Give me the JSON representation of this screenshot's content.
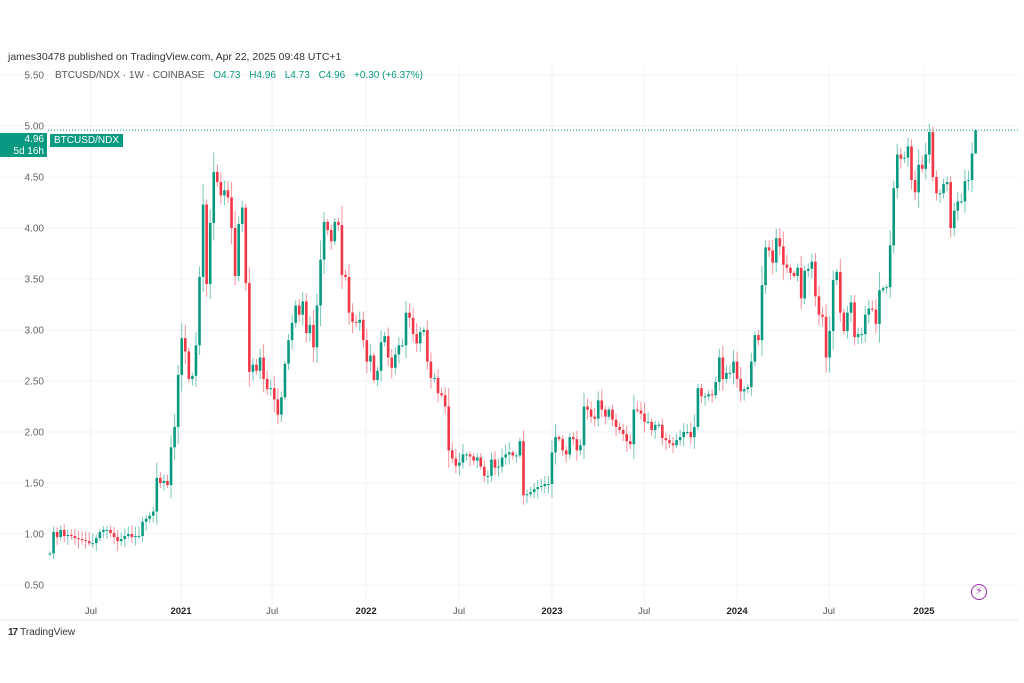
{
  "header": {
    "publisher": "james30478 published on TradingView.com, Apr 22, 2025 09:48 UTC+1"
  },
  "legend": {
    "symbol": "BTCUSD/NDX · 1W · COINBASE",
    "open": "O4.73",
    "high": "H4.96",
    "low": "L4.73",
    "close": "C4.96",
    "change": "+0.30 (+6.37%)"
  },
  "price_label": {
    "value": "4.96",
    "countdown": "5d 16h",
    "symbol": "BTCUSD/NDX"
  },
  "footer": {
    "logo_mark": "17",
    "brand": "TradingView"
  },
  "icons": {
    "bolt": "lightning-icon"
  },
  "colors": {
    "up": "#089981",
    "down": "#f23645",
    "grid": "#f0f3fa",
    "last_price_line": "#089981"
  },
  "chart_data": {
    "type": "candlestick",
    "title": "BTCUSD/NDX · 1W · COINBASE",
    "interval": "1W",
    "y_ticks": [
      "0.50",
      "1.00",
      "1.50",
      "2.00",
      "2.50",
      "3.00",
      "3.50",
      "4.00",
      "4.50",
      "5.00",
      "5.50"
    ],
    "ylim": [
      0.35,
      5.6
    ],
    "last_price": 4.96,
    "first_open": 0.8,
    "last_open": 4.73,
    "x_ticks": [
      {
        "label": "Jul",
        "week": 11.5,
        "bold": false
      },
      {
        "label": "2021",
        "week": 36.8,
        "bold": true
      },
      {
        "label": "Jul",
        "week": 62.4,
        "bold": false
      },
      {
        "label": "2022",
        "week": 88.8,
        "bold": true
      },
      {
        "label": "Jul",
        "week": 114.9,
        "bold": false
      },
      {
        "label": "2023",
        "week": 141,
        "bold": true
      },
      {
        "label": "Jul",
        "week": 166.9,
        "bold": false
      },
      {
        "label": "2024",
        "week": 193,
        "bold": true
      },
      {
        "label": "Jul",
        "week": 218.8,
        "bold": false
      },
      {
        "label": "2025",
        "week": 245.5,
        "bold": true
      }
    ],
    "closes": [
      0.81,
      1.02,
      0.97,
      1.04,
      0.98,
      0.99,
      0.98,
      0.96,
      0.95,
      0.94,
      0.93,
      0.91,
      0.91,
      0.96,
      1.02,
      1.04,
      1.04,
      1.01,
      0.97,
      0.93,
      0.95,
      0.98,
      1.0,
      0.97,
      0.98,
      0.98,
      1.12,
      1.15,
      1.18,
      1.22,
      1.55,
      1.5,
      1.52,
      1.48,
      1.85,
      2.05,
      2.56,
      2.92,
      2.79,
      2.52,
      2.55,
      2.85,
      3.52,
      4.23,
      3.45,
      4.05,
      4.55,
      4.45,
      4.32,
      4.37,
      4.3,
      4.0,
      3.53,
      4.04,
      4.2,
      3.46,
      2.59,
      2.66,
      2.6,
      2.73,
      2.52,
      2.42,
      2.43,
      2.32,
      2.17,
      2.34,
      2.67,
      2.9,
      3.07,
      3.24,
      3.15,
      3.28,
      2.97,
      3.05,
      2.83,
      3.24,
      3.69,
      4.06,
      3.98,
      3.87,
      4.06,
      4.03,
      3.54,
      3.52,
      3.17,
      3.08,
      3.07,
      3.1,
      2.9,
      2.69,
      2.75,
      2.51,
      2.6,
      2.88,
      2.94,
      2.73,
      2.63,
      2.76,
      2.85,
      2.85,
      3.17,
      3.12,
      2.96,
      2.87,
      2.98,
      3.0,
      2.69,
      2.53,
      2.53,
      2.38,
      2.36,
      2.25,
      1.82,
      1.74,
      1.67,
      1.7,
      1.78,
      1.78,
      1.76,
      1.72,
      1.75,
      1.66,
      1.57,
      1.57,
      1.73,
      1.65,
      1.66,
      1.75,
      1.78,
      1.8,
      1.77,
      1.77,
      1.91,
      1.38,
      1.39,
      1.41,
      1.44,
      1.46,
      1.47,
      1.49,
      1.49,
      1.8,
      1.95,
      1.93,
      1.82,
      1.78,
      1.95,
      1.93,
      1.82,
      1.87,
      2.25,
      2.22,
      2.15,
      2.13,
      2.31,
      2.22,
      2.15,
      2.22,
      2.12,
      2.05,
      2.02,
      1.98,
      1.91,
      1.88,
      2.22,
      2.21,
      2.18,
      2.1,
      2.1,
      2.02,
      2.07,
      2.07,
      1.94,
      1.92,
      1.89,
      1.87,
      1.92,
      1.95,
      2.0,
      2.0,
      1.95,
      2.05,
      2.43,
      2.35,
      2.35,
      2.37,
      2.36,
      2.49,
      2.73,
      2.52,
      2.58,
      2.58,
      2.69,
      2.52,
      2.4,
      2.42,
      2.44,
      2.69,
      2.95,
      2.9,
      3.44,
      3.81,
      3.78,
      3.66,
      3.9,
      3.82,
      3.64,
      3.61,
      3.56,
      3.53,
      3.61,
      3.31,
      3.58,
      3.6,
      3.67,
      3.33,
      3.15,
      3.13,
      2.73,
      2.99,
      3.49,
      3.57,
      3.17,
      2.99,
      3.17,
      3.27,
      2.93,
      2.96,
      2.96,
      3.15,
      3.21,
      3.2,
      3.06,
      3.39,
      3.41,
      3.42,
      3.83,
      4.39,
      4.72,
      4.68,
      4.69,
      4.8,
      4.47,
      4.35,
      4.62,
      4.58,
      4.72,
      4.94,
      4.5,
      4.34,
      4.34,
      4.43,
      4.45,
      4.0,
      4.17,
      4.26,
      4.26,
      4.46,
      4.47,
      4.73,
      4.96
    ]
  }
}
